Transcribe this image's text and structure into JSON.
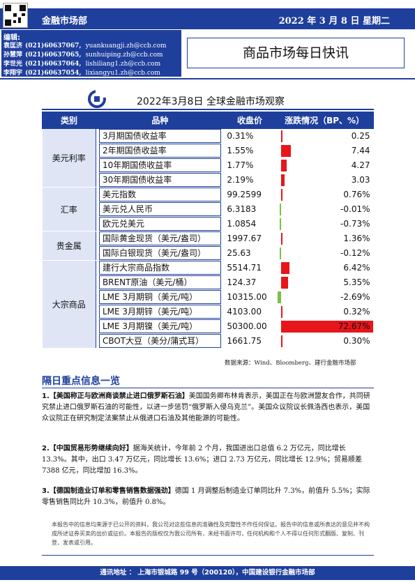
{
  "header": {
    "department": "金融市场部",
    "date": "2022 年 3 月 8 日  星期二",
    "editors_title": "编辑:",
    "editors": [
      {
        "name": "袁匡济",
        "phone": "(021)60637067,",
        "email": "yuankuangji.zh@ccb.com"
      },
      {
        "name": "孙慧萍",
        "phone": "(021)60637065,",
        "email": "sunhuiping.zh@ccb.com"
      },
      {
        "name": "李世光",
        "phone": "(021)60637064,",
        "email": "lishiliang1.zh@ccb.com"
      },
      {
        "name": "李翔宇",
        "phone": "(021)60637054,",
        "email": "lixiangyu1.zh@ccb.com"
      }
    ],
    "report_title": "商品市场每日快讯"
  },
  "table_title": "2022年3月8日  全球金融市场观察",
  "table_headers": {
    "category": "类别",
    "item": "品种",
    "close": "收盘价",
    "change": "涨跌情况（BP、%）"
  },
  "categories": {
    "usd_rates": "美元利率",
    "fx": "汇率",
    "precious": "贵金属",
    "commodities": "大宗商品"
  },
  "rows": [
    {
      "item": "3月期国债收益率",
      "close": "0.31%",
      "change": "0.25",
      "value": 0.25
    },
    {
      "item": "2年期国债收益率",
      "close": "1.55%",
      "change": "7.44",
      "value": 7.44
    },
    {
      "item": "10年期国债收益率",
      "close": "1.77%",
      "change": "4.27",
      "value": 4.27
    },
    {
      "item": "30年期国债收益率",
      "close": "2.19%",
      "change": "3.03",
      "value": 3.03
    },
    {
      "item": "美元指数",
      "close": "99.2599",
      "change": "0.76%",
      "value": 0.76
    },
    {
      "item": "美元兑人民币",
      "close": "6.3183",
      "change": "-0.01%",
      "value": -0.01
    },
    {
      "item": "欧元兑美元",
      "close": "1.0854",
      "change": "-0.73%",
      "value": -0.73
    },
    {
      "item": "国际黄金现货（美元/盎司）",
      "close": "1997.67",
      "change": "1.36%",
      "value": 1.36
    },
    {
      "item": "国际白银现货（美元/盎司）",
      "close": "25.63",
      "change": "-0.12%",
      "value": -0.12
    },
    {
      "item": "建行大宗商品指数",
      "close": "5514.71",
      "change": "6.42%",
      "value": 6.42
    },
    {
      "item": "BRENT原油（美元/桶）",
      "close": "124.37",
      "change": "5.35%",
      "value": 5.35
    },
    {
      "item": "LME 3月期铜（美元/吨）",
      "close": "10315.00",
      "change": "-2.69%",
      "value": -2.69
    },
    {
      "item": "LME 3月期锌（美元/吨）",
      "close": "4103.00",
      "change": "0.32%",
      "value": 0.32
    },
    {
      "item": "LME 3月期镍（美元/吨）",
      "close": "50300.00",
      "change": "72.67%",
      "value": 72.67
    },
    {
      "item": "CBOT大豆（美分/蒲式耳）",
      "close": "1661.75",
      "change": "0.30%",
      "value": 0.3
    }
  ],
  "colors": {
    "brand": "#1f3f9c",
    "positive": "#e8151b",
    "negative": "#7cc043",
    "category_bg": "#dfe5f5"
  },
  "source": "数据来源：Wind、Bloomberg、建行金融市场部",
  "news_title": "隔日重点信息一览",
  "news": [
    {
      "headline": "1.【美国称正与欧洲商谈禁止进口俄罗斯石油】",
      "body": "美国国务卿布林肯表示，美国正在与欧洲盟友合作，共同研究禁止进口俄罗斯石油的可能性，以进一步惩罚“俄罗斯入侵乌克兰”。美国众议院议长佩洛西也表示，美国众议院正在研究制定法案禁止从俄进口石油及其他能源的可能性。"
    },
    {
      "headline": "2.【中国贸易形势继续向好】",
      "body": "据海关统计，今年前 2 个月，我国进出口总值 6.2 万亿元，同比增长 13.3%。其中，出口 3.47 万亿元，同比增长 13.6%；进口 2.73 万亿元，同比增长 12.9%；贸易顺差 7388 亿元，同比增加 16.3%。"
    },
    {
      "headline": "3.【德国制造业订单和零售销售数据强劲】",
      "body": "德国 1 月调整后制造业订单同比升 7.3%，前值升 5.5%；实际零售销售同比升 10.3%，前值升 0.8%。"
    }
  ],
  "disclaimer": "本报告中的信息均来源于已公开的资料，我公司对这些信息的准确性及完整性不作任何保证。报告中的信息或所表达的意见并不构成所述证券买卖的出价或征价。本报告的版权仅为我公司所有，未经书面许可，任何机构和个人不得以任何形式翻版、复制、刊登、发表或引用。",
  "footer": "通讯地址 ： 上海市银城路 99 号（200120），中国建设银行金融市场部"
}
